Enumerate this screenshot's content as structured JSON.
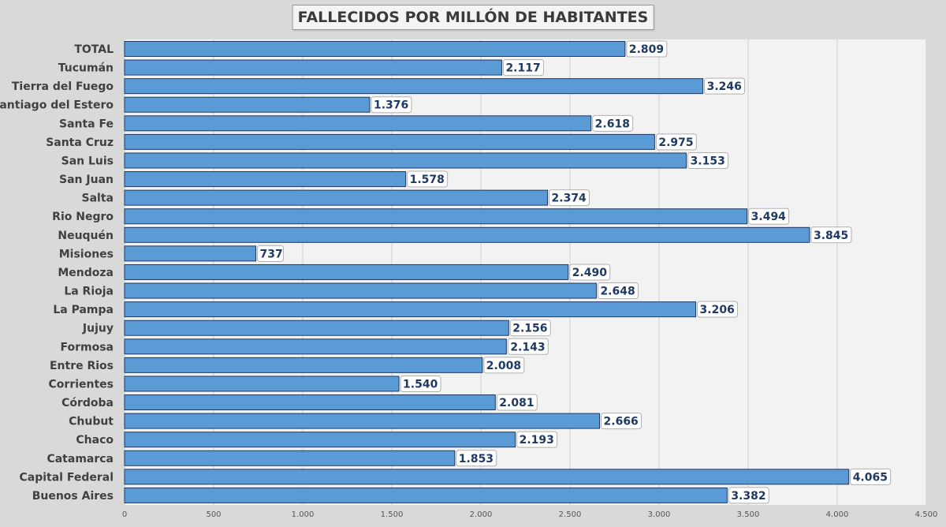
{
  "chart_data": {
    "type": "bar",
    "orientation": "horizontal",
    "title": "FALLECIDOS POR MILLÓN DE HABITANTES",
    "xlabel": "",
    "ylabel": "",
    "xlim": [
      0,
      4500
    ],
    "xticks": [
      0,
      500,
      1000,
      1500,
      2000,
      2500,
      3000,
      3500,
      4000,
      4500
    ],
    "xtick_labels": [
      "0",
      "500",
      "1.000",
      "1.500",
      "2.000",
      "2.500",
      "3.000",
      "3.500",
      "4.000",
      "4.500"
    ],
    "grid": true,
    "legend": "none",
    "categories": [
      "TOTAL",
      "Tucumán",
      "Tierra del Fuego",
      "Santiago del Estero",
      "Santa Fe",
      "Santa Cruz",
      "San Luis",
      "San Juan",
      "Salta",
      "Rio Negro",
      "Neuquén",
      "Misiones",
      "Mendoza",
      "La Rioja",
      "La Pampa",
      "Jujuy",
      "Formosa",
      "Entre Rios",
      "Corrientes",
      "Córdoba",
      "Chubut",
      "Chaco",
      "Catamarca",
      "Capital Federal",
      "Buenos Aires"
    ],
    "values": [
      2809,
      2117,
      3246,
      1376,
      2618,
      2975,
      3153,
      1578,
      2374,
      3494,
      3845,
      737,
      2490,
      2648,
      3206,
      2156,
      2143,
      2008,
      1540,
      2081,
      2666,
      2193,
      1853,
      4065,
      3382
    ],
    "value_labels": [
      "2.809",
      "2.117",
      "3.246",
      "1.376",
      "2.618",
      "2.975",
      "3.153",
      "1.578",
      "2.374",
      "3.494",
      "3.845",
      "737",
      "2.490",
      "2.648",
      "3.206",
      "2.156",
      "2.143",
      "2.008",
      "1.540",
      "2.081",
      "2.666",
      "2.193",
      "1.853",
      "4.065",
      "3.382"
    ]
  },
  "colors": {
    "bar_fill": "#5b9bd5",
    "bar_stroke": "#1f3864",
    "label_text": "#1f3864",
    "plot_bg": "#f2f2f2",
    "page_bg": "#d9d9d9",
    "grid": "#d0d0d0"
  }
}
